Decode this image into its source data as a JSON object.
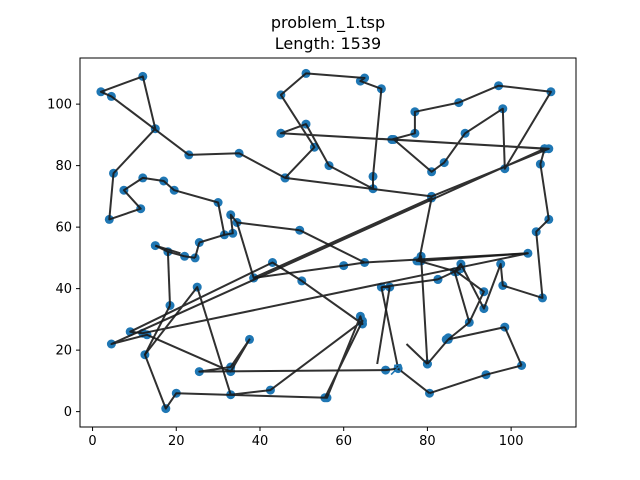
{
  "chart_data": {
    "type": "line",
    "title": "problem_1.tsp",
    "subtitle": "Length: 1539",
    "xlabel": "",
    "ylabel": "",
    "xlim": [
      -3,
      115.5
    ],
    "ylim": [
      -5,
      115
    ],
    "xticks": [
      0,
      20,
      40,
      60,
      80,
      100
    ],
    "yticks": [
      0,
      20,
      40,
      60,
      80,
      100
    ],
    "grid": false,
    "colors": {
      "tour": "#1a1a1a",
      "city": "#1f77b4",
      "arrow": "#1f77b4"
    },
    "route": [
      [
        73,
        14
      ],
      [
        70,
        13.5
      ],
      [
        25.5,
        13
      ],
      [
        33,
        14.5
      ],
      [
        37.5,
        23.5
      ],
      [
        33,
        13
      ],
      [
        13,
        25
      ],
      [
        4.5,
        22
      ],
      [
        108,
        85.5
      ],
      [
        71.5,
        88.5
      ],
      [
        45,
        90.5
      ],
      [
        109,
        85.5
      ],
      [
        81,
        70
      ],
      [
        46,
        76
      ],
      [
        53,
        86
      ],
      [
        45,
        103
      ],
      [
        51,
        110
      ],
      [
        65,
        108.5
      ],
      [
        64,
        107.5
      ],
      [
        69,
        105
      ],
      [
        67,
        76.5
      ],
      [
        67,
        72.5
      ],
      [
        56.5,
        80
      ],
      [
        51,
        93.5
      ],
      [
        45,
        90.5
      ],
      [
        71.5,
        88.5
      ],
      [
        77,
        90.5
      ],
      [
        77,
        97.5
      ],
      [
        87.5,
        100.5
      ],
      [
        97,
        106
      ],
      [
        109.5,
        104
      ],
      [
        98.5,
        79
      ],
      [
        98,
        98.5
      ],
      [
        89,
        90.5
      ],
      [
        84,
        81
      ],
      [
        81,
        78
      ],
      [
        72,
        88.5
      ],
      [
        108,
        85.5
      ],
      [
        107,
        80.5
      ],
      [
        109,
        62.5
      ],
      [
        106,
        58.5
      ],
      [
        107.5,
        37
      ],
      [
        98,
        41
      ],
      [
        97.5,
        48
      ],
      [
        93.5,
        33.5
      ],
      [
        88,
        48
      ],
      [
        86.5,
        45.5
      ],
      [
        90,
        29
      ],
      [
        93.5,
        39
      ],
      [
        87,
        45.5
      ],
      [
        78,
        49
      ],
      [
        81,
        69.5
      ],
      [
        38.5,
        43.5
      ],
      [
        34.5,
        61.5
      ],
      [
        33,
        64
      ],
      [
        33.5,
        58
      ],
      [
        31.5,
        57.5
      ],
      [
        30,
        68
      ],
      [
        19.5,
        72
      ],
      [
        17,
        75
      ],
      [
        12,
        76
      ],
      [
        7.5,
        72
      ],
      [
        11.5,
        66
      ],
      [
        4,
        62.5
      ],
      [
        5,
        77.5
      ],
      [
        15,
        92
      ],
      [
        12,
        109
      ],
      [
        2,
        104
      ],
      [
        4.5,
        102.5
      ],
      [
        23,
        83.5
      ],
      [
        35,
        84
      ],
      [
        46,
        76
      ]
    ],
    "route_tail": [
      [
        80,
        15.5
      ],
      [
        78.5,
        50.5
      ],
      [
        77.5,
        49
      ],
      [
        78.5,
        49
      ],
      [
        104,
        51.5
      ],
      [
        12,
        25.5
      ],
      [
        9,
        26
      ],
      [
        43,
        48.5
      ],
      [
        50,
        42.5
      ],
      [
        64.5,
        28.5
      ],
      [
        64,
        31
      ],
      [
        56,
        4.5
      ],
      [
        20,
        6
      ],
      [
        17.5,
        1
      ],
      [
        12.5,
        18.5
      ],
      [
        25,
        40.5
      ],
      [
        33,
        5.5
      ],
      [
        42.5,
        7
      ],
      [
        64.5,
        29.5
      ],
      [
        55.5,
        4.5
      ]
    ],
    "cities_extra": [
      [
        69,
        40.5
      ],
      [
        82.5,
        43
      ],
      [
        80,
        15.5
      ],
      [
        85,
        24
      ],
      [
        98.5,
        27.5
      ],
      [
        102.5,
        15
      ],
      [
        94,
        12
      ],
      [
        80.5,
        6
      ],
      [
        71,
        40.5
      ],
      [
        82.5,
        43
      ],
      [
        88,
        46.5
      ],
      [
        85,
        23.5
      ],
      [
        84.5,
        23.5
      ],
      [
        60,
        47.5
      ],
      [
        65,
        48.5
      ],
      [
        49.5,
        59
      ],
      [
        38.5,
        43.5
      ],
      [
        24.5,
        50
      ],
      [
        25.5,
        55
      ],
      [
        22,
        50.5
      ],
      [
        18,
        52
      ],
      [
        15,
        54
      ],
      [
        18.5,
        34.5
      ]
    ],
    "arrow_at": [
      73,
      14
    ]
  }
}
